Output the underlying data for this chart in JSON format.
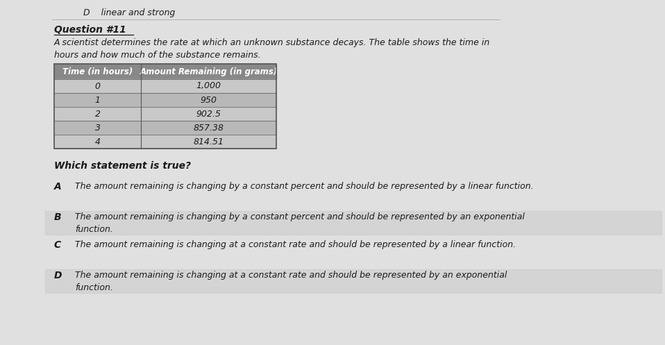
{
  "top_label": "D    linear and strong",
  "question_label": "Question #11",
  "question_text": "A scientist determines the rate at which an unknown substance decays. The table shows the time in\nhours and how much of the substance remains.",
  "table_header_col1": "Time (in hours)",
  "table_header_col2": "Amount Remaining (in grams)",
  "table_rows": [
    [
      "0",
      "1,000"
    ],
    [
      "1",
      "950"
    ],
    [
      "2",
      "902.5"
    ],
    [
      "3",
      "857.38"
    ],
    [
      "4",
      "814.51"
    ]
  ],
  "which_statement": "Which statement is true?",
  "choices": [
    {
      "letter": "A",
      "text": "The amount remaining is changing by a constant percent and should be represented by a linear function."
    },
    {
      "letter": "B",
      "text": "The amount remaining is changing by a constant percent and should be represented by an exponential\nfunction."
    },
    {
      "letter": "C",
      "text": "The amount remaining is changing at a constant rate and should be represented by a linear function."
    },
    {
      "letter": "D",
      "text": "The amount remaining is changing at a constant rate and should be represented by an exponential\nfunction."
    }
  ],
  "page_color": "#e0e0e0",
  "text_color": "#1a1a1a",
  "table_header_bg": "#888888",
  "table_row_even": "#c8c8c8",
  "table_row_odd": "#b8b8b8",
  "table_border_color": "#555555",
  "highlight_color": "#cccccc"
}
